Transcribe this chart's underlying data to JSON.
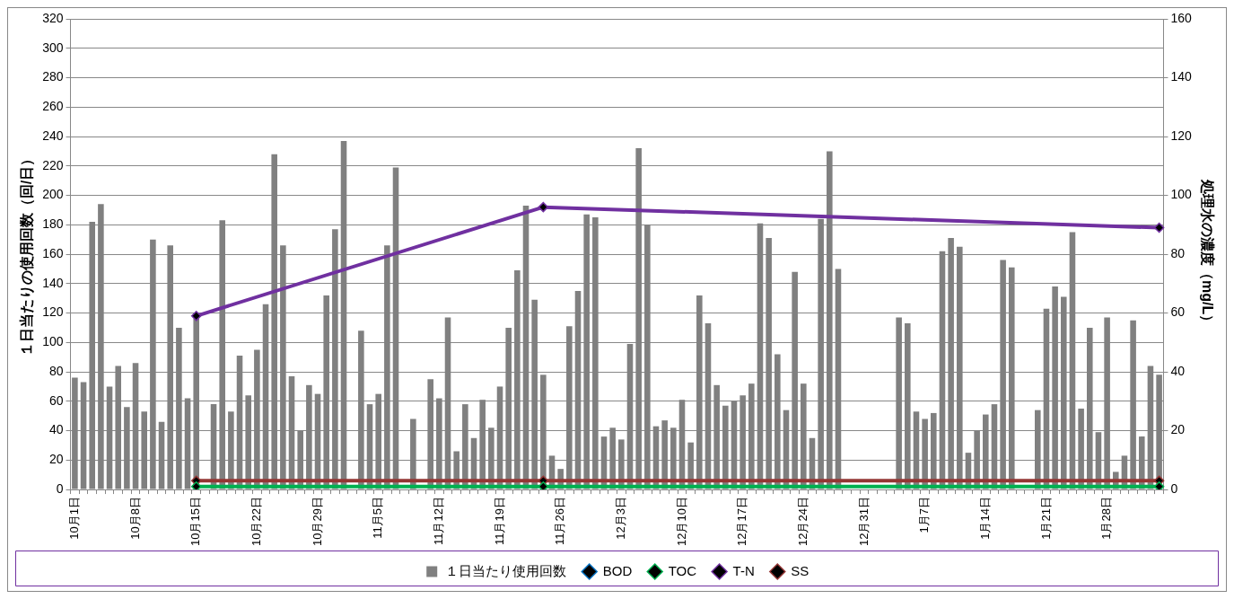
{
  "chart_data": {
    "type": "bar",
    "categories": [
      "10月1日",
      null,
      null,
      null,
      null,
      null,
      null,
      "10月8日",
      null,
      null,
      null,
      null,
      null,
      null,
      "10月15日",
      null,
      null,
      null,
      null,
      null,
      null,
      "10月22日",
      null,
      null,
      null,
      null,
      null,
      null,
      "10月29日",
      null,
      null,
      null,
      null,
      null,
      null,
      "11月5日",
      null,
      null,
      null,
      null,
      null,
      null,
      "11月12日",
      null,
      null,
      null,
      null,
      null,
      null,
      "11月19日",
      null,
      null,
      null,
      null,
      null,
      null,
      "11月26日",
      null,
      null,
      null,
      null,
      null,
      null,
      "12月3日",
      null,
      null,
      null,
      null,
      null,
      null,
      "12月10日",
      null,
      null,
      null,
      null,
      null,
      null,
      "12月17日",
      null,
      null,
      null,
      null,
      null,
      null,
      "12月24日",
      null,
      null,
      null,
      null,
      null,
      null,
      "12月31日",
      null,
      null,
      null,
      null,
      null,
      null,
      "1月7日",
      null,
      null,
      null,
      null,
      null,
      null,
      "1月14日",
      null,
      null,
      null,
      null,
      null,
      null,
      "1月21日",
      null,
      null,
      null,
      null,
      null,
      null,
      "1月28日",
      null,
      null,
      null,
      null,
      null,
      null
    ],
    "series": [
      {
        "name": "１日当たり使用回数",
        "color": "#808080",
        "values": [
          76,
          73,
          182,
          194,
          70,
          84,
          56,
          86,
          53,
          170,
          46,
          166,
          110,
          62,
          116,
          null,
          58,
          183,
          53,
          91,
          64,
          95,
          126,
          228,
          166,
          77,
          40,
          71,
          65,
          132,
          177,
          237,
          null,
          108,
          58,
          65,
          166,
          219,
          null,
          48,
          null,
          75,
          62,
          117,
          26,
          58,
          35,
          61,
          42,
          70,
          110,
          149,
          193,
          129,
          78,
          23,
          14,
          111,
          135,
          187,
          185,
          36,
          42,
          34,
          99,
          232,
          180,
          43,
          47,
          42,
          61,
          32,
          132,
          113,
          71,
          57,
          60,
          64,
          72,
          181,
          171,
          92,
          54,
          148,
          72,
          35,
          184,
          230,
          150,
          null,
          null,
          null,
          null,
          null,
          null,
          117,
          113,
          53,
          48,
          52,
          162,
          171,
          165,
          25,
          40,
          51,
          58,
          156,
          151,
          null,
          null,
          54,
          123,
          138,
          131,
          175,
          55,
          110,
          39,
          117,
          12,
          23,
          115,
          36,
          84,
          78
        ]
      },
      {
        "name": "BOD",
        "type": "line",
        "axis": "y2",
        "color": "#0070c0",
        "values": [
          null,
          null,
          null,
          null,
          null,
          null,
          null,
          null,
          null,
          null,
          null,
          null,
          null,
          null,
          null,
          null,
          null,
          null,
          null,
          null,
          null,
          null,
          null,
          null,
          null,
          null,
          null,
          null,
          null,
          null,
          null,
          null,
          null,
          null,
          null,
          null,
          null,
          null,
          null,
          null,
          null,
          null,
          null,
          null,
          null,
          null,
          null,
          null,
          null,
          null,
          null,
          null,
          null,
          null,
          null,
          null,
          null,
          null,
          null,
          null,
          null,
          null,
          null,
          null,
          null,
          null,
          null,
          null,
          null,
          null,
          null,
          null,
          null,
          null,
          null,
          null,
          null,
          null,
          null,
          null,
          null,
          null,
          null,
          null,
          null,
          null,
          null,
          null,
          null,
          null,
          null,
          null,
          null,
          null,
          null,
          null,
          null,
          null,
          null,
          null,
          null,
          null,
          null,
          null,
          null,
          null,
          null,
          null,
          null,
          null,
          null,
          null,
          null,
          null,
          null,
          null,
          null,
          null,
          null,
          null,
          null,
          null,
          null,
          null,
          null,
          null
        ]
      },
      {
        "name": "TOC",
        "type": "line",
        "axis": "y2",
        "color": "#00b050",
        "values": [
          null,
          null,
          null,
          null,
          null,
          null,
          null,
          null,
          null,
          null,
          null,
          null,
          null,
          null,
          1,
          null,
          null,
          null,
          null,
          null,
          null,
          null,
          null,
          null,
          null,
          null,
          null,
          null,
          null,
          null,
          null,
          null,
          null,
          null,
          null,
          null,
          null,
          null,
          null,
          null,
          null,
          null,
          null,
          null,
          null,
          null,
          null,
          null,
          null,
          null,
          null,
          null,
          null,
          null,
          1,
          null,
          null,
          null,
          null,
          null,
          null,
          null,
          null,
          null,
          null,
          null,
          null,
          null,
          null,
          null,
          null,
          null,
          null,
          null,
          null,
          null,
          null,
          null,
          null,
          null,
          null,
          null,
          null,
          null,
          null,
          null,
          null,
          null,
          null,
          null,
          null,
          null,
          null,
          null,
          null,
          null,
          null,
          null,
          null,
          null,
          null,
          null,
          null,
          null,
          null,
          null,
          null,
          null,
          null,
          null,
          null,
          null,
          null,
          null,
          null,
          null,
          null,
          null,
          null,
          null,
          null,
          null,
          null,
          null,
          null,
          1
        ]
      },
      {
        "name": "T-N",
        "type": "line",
        "axis": "y2",
        "color": "#7030a0",
        "values": [
          null,
          null,
          null,
          null,
          null,
          null,
          null,
          null,
          null,
          null,
          null,
          null,
          null,
          null,
          59,
          null,
          null,
          null,
          null,
          null,
          null,
          null,
          null,
          null,
          null,
          null,
          null,
          null,
          null,
          null,
          null,
          null,
          null,
          null,
          null,
          null,
          null,
          null,
          null,
          null,
          null,
          null,
          null,
          null,
          null,
          null,
          null,
          null,
          null,
          null,
          null,
          null,
          null,
          null,
          96,
          null,
          null,
          null,
          null,
          null,
          null,
          null,
          null,
          null,
          null,
          null,
          null,
          null,
          null,
          null,
          null,
          null,
          null,
          null,
          null,
          null,
          null,
          null,
          null,
          null,
          null,
          null,
          null,
          null,
          null,
          null,
          null,
          null,
          null,
          null,
          null,
          null,
          null,
          null,
          null,
          null,
          null,
          null,
          null,
          null,
          null,
          null,
          null,
          null,
          null,
          null,
          null,
          null,
          null,
          null,
          null,
          null,
          null,
          null,
          null,
          null,
          null,
          null,
          null,
          null,
          null,
          null,
          null,
          null,
          null,
          89
        ]
      },
      {
        "name": "SS",
        "type": "line",
        "axis": "y2",
        "color": "#943634",
        "values": [
          null,
          null,
          null,
          null,
          null,
          null,
          null,
          null,
          null,
          null,
          null,
          null,
          null,
          null,
          3,
          null,
          null,
          null,
          null,
          null,
          null,
          null,
          null,
          null,
          null,
          null,
          null,
          null,
          null,
          null,
          null,
          null,
          null,
          null,
          null,
          null,
          null,
          null,
          null,
          null,
          null,
          null,
          null,
          null,
          null,
          null,
          null,
          null,
          null,
          null,
          null,
          null,
          null,
          null,
          3,
          null,
          null,
          null,
          null,
          null,
          null,
          null,
          null,
          null,
          null,
          null,
          null,
          null,
          null,
          null,
          null,
          null,
          null,
          null,
          null,
          null,
          null,
          null,
          null,
          null,
          null,
          null,
          null,
          null,
          null,
          null,
          null,
          null,
          null,
          null,
          null,
          null,
          null,
          null,
          null,
          null,
          null,
          null,
          null,
          null,
          null,
          null,
          null,
          null,
          null,
          null,
          null,
          null,
          null,
          null,
          null,
          null,
          null,
          null,
          null,
          null,
          null,
          null,
          null,
          null,
          null,
          null,
          null,
          null,
          null,
          3
        ]
      }
    ],
    "ylabel": "１日当たりの使用回数（回/日）",
    "y2label": "処理水の濃度（mg/L）",
    "ylim": [
      0,
      320
    ],
    "yticks": [
      0,
      20,
      40,
      60,
      80,
      100,
      120,
      140,
      160,
      180,
      200,
      220,
      240,
      260,
      280,
      300,
      320
    ],
    "y2lim": [
      0,
      160
    ],
    "y2ticks": [
      0,
      20,
      40,
      60,
      80,
      100,
      120,
      140,
      160
    ],
    "grid": "y",
    "legend": "bottom",
    "marker": "diamond"
  }
}
